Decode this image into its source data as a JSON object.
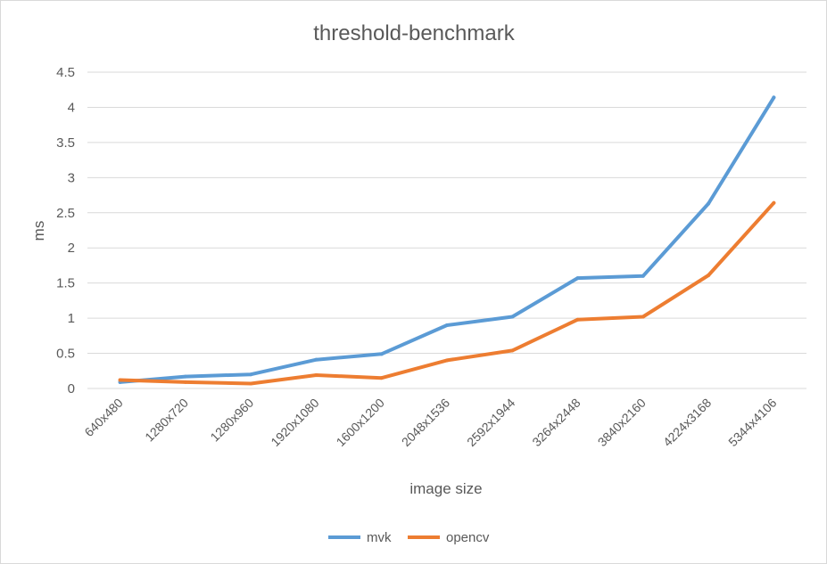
{
  "chart_data": {
    "type": "line",
    "title": "threshold-benchmark",
    "xlabel": "image size",
    "ylabel": "ms",
    "categories": [
      "640x480",
      "1280x720",
      "1280x960",
      "1920x1080",
      "1600x1200",
      "2048x1536",
      "2592x1944",
      "3264x2448",
      "3840x2160",
      "4224x3168",
      "5344x4106"
    ],
    "ylim": [
      0,
      4.5
    ],
    "yticks": [
      0,
      0.5,
      1,
      1.5,
      2,
      2.5,
      3,
      3.5,
      4,
      4.5
    ],
    "ytick_labels": [
      "0",
      "0.5",
      "1",
      "1.5",
      "2",
      "2.5",
      "3",
      "3.5",
      "4",
      "4.5"
    ],
    "grid": true,
    "legend_position": "bottom",
    "series": [
      {
        "name": "mvk",
        "color": "#5b9bd5",
        "values": [
          0.09,
          0.17,
          0.2,
          0.41,
          0.49,
          0.9,
          1.02,
          1.57,
          1.6,
          2.63,
          4.14
        ]
      },
      {
        "name": "opencv",
        "color": "#ed7d31",
        "values": [
          0.12,
          0.09,
          0.07,
          0.19,
          0.15,
          0.4,
          0.54,
          0.98,
          1.02,
          1.61,
          2.64
        ]
      }
    ]
  }
}
